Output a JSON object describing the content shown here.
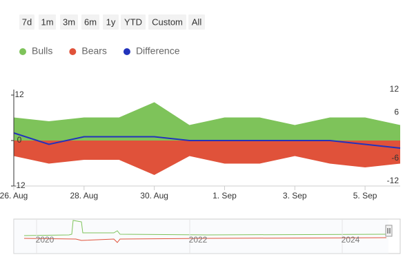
{
  "range_buttons": [
    "7d",
    "1m",
    "3m",
    "6m",
    "1y",
    "YTD",
    "Custom",
    "All"
  ],
  "chart_data": {
    "type": "area",
    "categories": [
      "26. Aug",
      null,
      "28. Aug",
      null,
      "30. Aug",
      null,
      "1. Sep",
      null,
      "3. Sep",
      null,
      "5. Sep",
      null
    ],
    "series": [
      {
        "name": "Bulls",
        "color": "#7ec35a",
        "values": [
          6,
          5,
          6,
          6,
          10,
          4,
          6,
          6,
          4,
          6,
          6,
          4
        ]
      },
      {
        "name": "Bears",
        "color": "#e0523a",
        "values": [
          -4,
          -6,
          -5,
          -5,
          -9,
          -4,
          -6,
          -6,
          -4,
          -6,
          -7,
          -6
        ]
      },
      {
        "name": "Difference",
        "color": "#2233bb",
        "type": "line",
        "values": [
          2,
          -1,
          1,
          1,
          1,
          0,
          0,
          0,
          0,
          0,
          -1,
          -2
        ]
      }
    ],
    "ylim": [
      -12,
      12
    ],
    "yticks": [
      -12,
      0,
      12
    ],
    "y2lim": [
      -12,
      12
    ],
    "y2ticks": [
      -12,
      -6,
      6,
      12
    ],
    "grid": false,
    "legend": "top-left",
    "navigator_labels": [
      "2020",
      "2022",
      "2024"
    ]
  }
}
